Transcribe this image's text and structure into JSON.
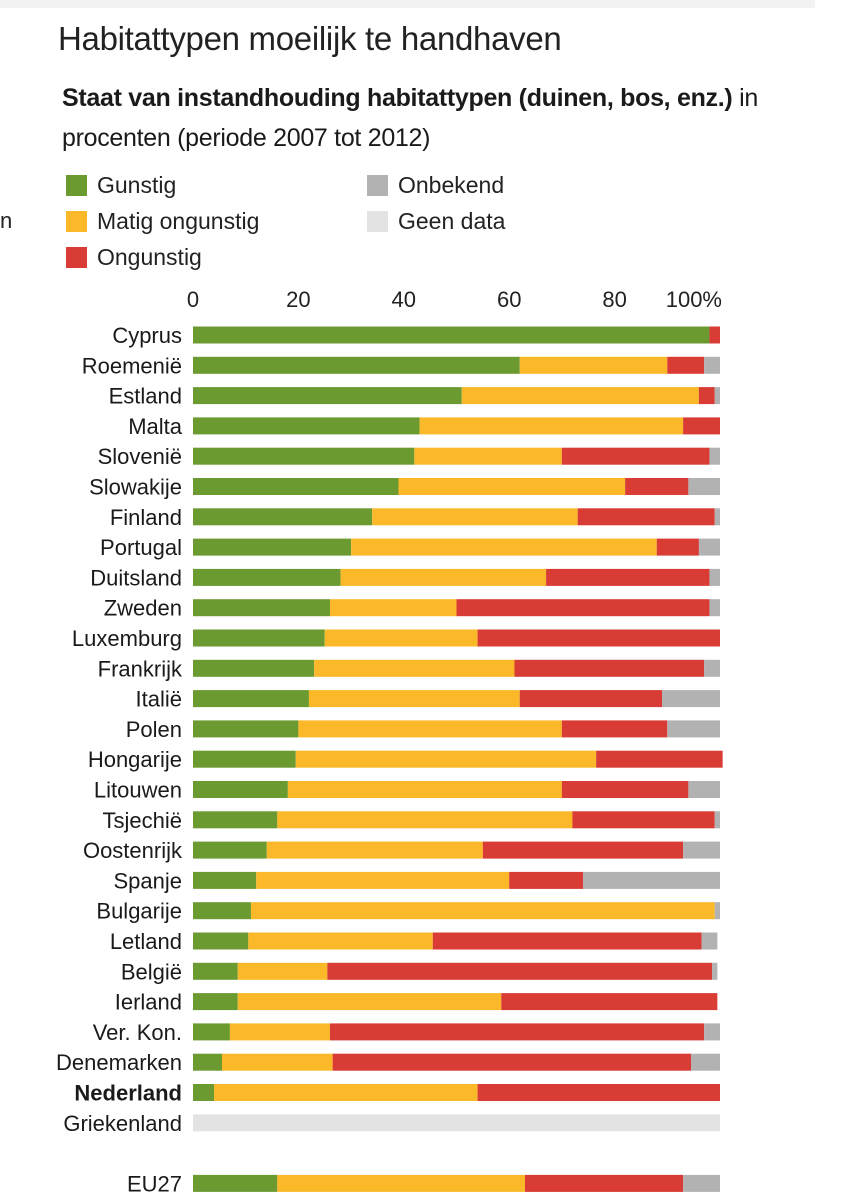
{
  "title": "Habitattypen moeilijk te handhaven",
  "subtitle": {
    "bold": "Staat van instandhouding habitattypen (duinen, bos, enz.)",
    "normal": " in procenten (periode 2007 tot 2012)"
  },
  "side_fragment": "n",
  "legend": [
    {
      "label": "Gunstig",
      "color": "#6b9a31"
    },
    {
      "label": "Matig ongunstig",
      "color": "#fbb829"
    },
    {
      "label": "Ongunstig",
      "color": "#d93b35"
    },
    {
      "label": "Onbekend",
      "color": "#b2b2b2"
    },
    {
      "label": "Geen data",
      "color": "#e3e3e3"
    }
  ],
  "chart_data": {
    "type": "bar",
    "orientation": "horizontal",
    "stacked": true,
    "xlim": [
      0,
      100
    ],
    "x_ticks": [
      "0",
      "20",
      "40",
      "60",
      "80",
      "100%"
    ],
    "categories": [
      "Cyprus",
      "Roemenië",
      "Estland",
      "Malta",
      "Slovenië",
      "Slowakije",
      "Finland",
      "Portugal",
      "Duitsland",
      "Zweden",
      "Luxemburg",
      "Frankrijk",
      "Italië",
      "Polen",
      "Hongarije",
      "Litouwen",
      "Tsjechië",
      "Oostenrijk",
      "Spanje",
      "Bulgarije",
      "Letland",
      "België",
      "Ierland",
      "Ver. Kon.",
      "Denemarken",
      "Nederland",
      "Griekenland",
      "EU27"
    ],
    "highlight": "Nederland",
    "series": [
      {
        "name": "Gunstig",
        "color": "#6b9a31",
        "values": [
          98,
          62,
          51,
          43,
          42,
          39,
          34,
          30,
          28,
          26,
          25,
          23,
          22,
          20,
          19.5,
          18,
          16,
          14,
          12,
          11,
          10.5,
          8.5,
          8.5,
          7,
          5.5,
          4,
          0,
          16
        ]
      },
      {
        "name": "Matig ongunstig",
        "color": "#fbb829",
        "values": [
          0,
          28,
          45,
          50,
          28,
          43,
          39,
          58,
          39,
          24,
          29,
          38,
          40,
          50,
          57,
          52,
          56,
          41,
          48,
          88,
          35,
          17,
          50,
          19,
          21,
          50,
          0,
          47
        ]
      },
      {
        "name": "Ongunstig",
        "color": "#d93b35",
        "values": [
          2,
          7,
          3,
          7,
          28,
          12,
          26,
          8,
          31,
          48,
          46,
          36,
          27,
          20,
          24,
          24,
          27,
          38,
          14,
          0,
          51,
          73,
          41,
          71,
          68,
          46,
          0,
          30
        ]
      },
      {
        "name": "Onbekend",
        "color": "#b2b2b2",
        "values": [
          0,
          3,
          1,
          0,
          2,
          6,
          1,
          4,
          2,
          2,
          0,
          3,
          11,
          10,
          0,
          6,
          1,
          7,
          26,
          1,
          3,
          1,
          0,
          3,
          5.5,
          0,
          0,
          7
        ]
      },
      {
        "name": "Geen data",
        "color": "#e3e3e3",
        "values": [
          0,
          0,
          0,
          0,
          0,
          0,
          0,
          0,
          0,
          0,
          0,
          0,
          0,
          0,
          0,
          0,
          0,
          0,
          0,
          0,
          0,
          0,
          0,
          0,
          0,
          0,
          100,
          0
        ]
      }
    ]
  }
}
